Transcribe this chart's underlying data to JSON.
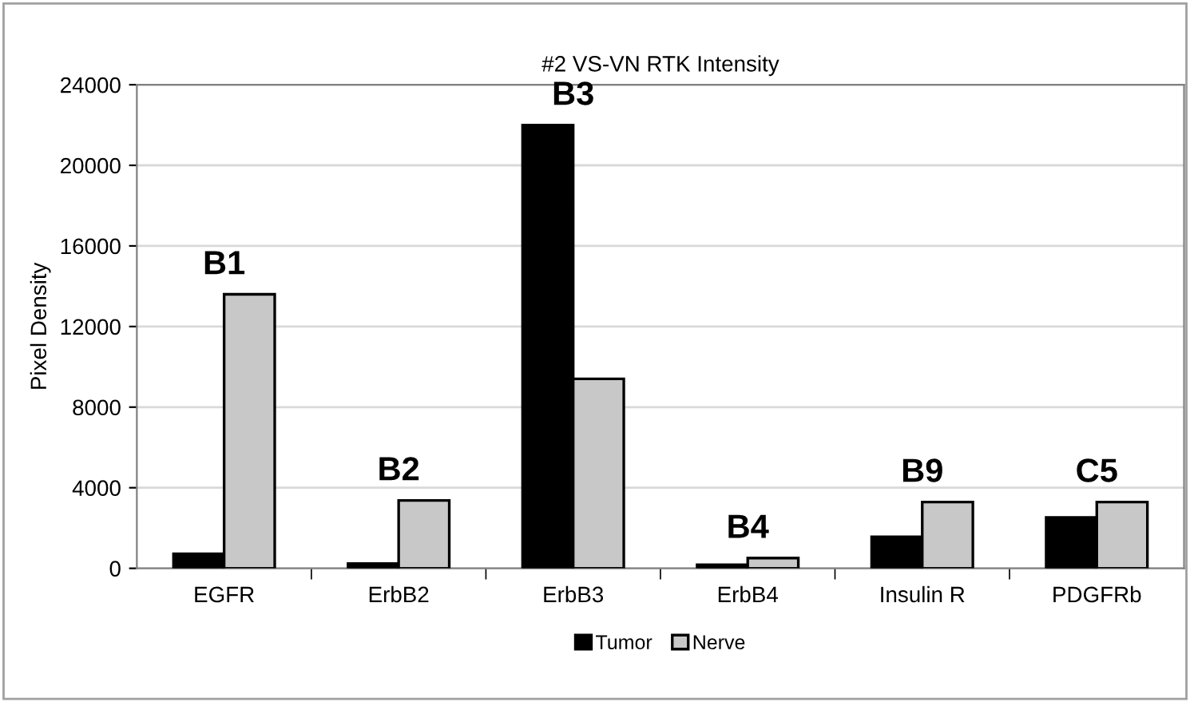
{
  "chart_data": {
    "type": "bar",
    "title": "#2 VS-VN RTK Intensity",
    "ylabel": "Pixel Density",
    "categories": [
      "EGFR",
      "ErbB2",
      "ErbB3",
      "ErbB4",
      "Insulin R",
      "PDGFRb"
    ],
    "series": [
      {
        "name": "Tumor",
        "color": "#000000",
        "values": [
          720,
          240,
          22000,
          180,
          1560,
          2520
        ]
      },
      {
        "name": "Nerve",
        "color": "#c8c8c8",
        "values": [
          13600,
          3370,
          9400,
          510,
          3290,
          3290
        ]
      }
    ],
    "annotations": [
      "B1",
      "B2",
      "B3",
      "B4",
      "B9",
      "C5"
    ],
    "ylim": [
      0,
      24000
    ],
    "yticks": [
      0,
      4000,
      8000,
      12000,
      16000,
      20000,
      24000
    ],
    "grid": "y",
    "legend": "bottom"
  }
}
